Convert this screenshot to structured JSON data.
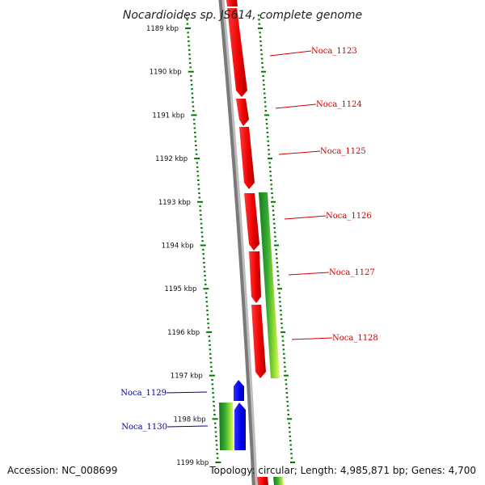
{
  "title": "Nocardioides sp. JS614, complete genome",
  "footer": {
    "accession": "Accession: NC_008699",
    "info": "Topology: circular; Length: 4,985,871 bp; Genes: 4,700"
  },
  "ticks": [
    "1189 kbp",
    "1190 kbp",
    "1191 kbp",
    "1192 kbp",
    "1193 kbp",
    "1194 kbp",
    "1195 kbp",
    "1196 kbp",
    "1197 kbp",
    "1198 kbp",
    "1199 kbp"
  ],
  "genes": [
    {
      "label": "Noca_1123",
      "strand": "forward",
      "color": "#dd0000"
    },
    {
      "label": "Noca_1124",
      "strand": "forward",
      "color": "#dd0000"
    },
    {
      "label": "Noca_1125",
      "strand": "forward",
      "color": "#dd0000"
    },
    {
      "label": "Noca_1126",
      "strand": "forward",
      "color": "#dd0000"
    },
    {
      "label": "Noca_1127",
      "strand": "forward",
      "color": "#dd0000"
    },
    {
      "label": "Noca_1128",
      "strand": "forward",
      "color": "#dd0000"
    },
    {
      "label": "Noca_1129",
      "strand": "reverse",
      "color": "#0000cc"
    },
    {
      "label": "Noca_1130",
      "strand": "reverse",
      "color": "#0000cc"
    }
  ],
  "colors": {
    "backbone": "#808080",
    "forward_gene": "#dd0000",
    "reverse_gene": "#0000cc",
    "feature_band": "#33aa33",
    "tick": "#007700",
    "forward_label": "#cc0000",
    "reverse_label": "#000099"
  }
}
